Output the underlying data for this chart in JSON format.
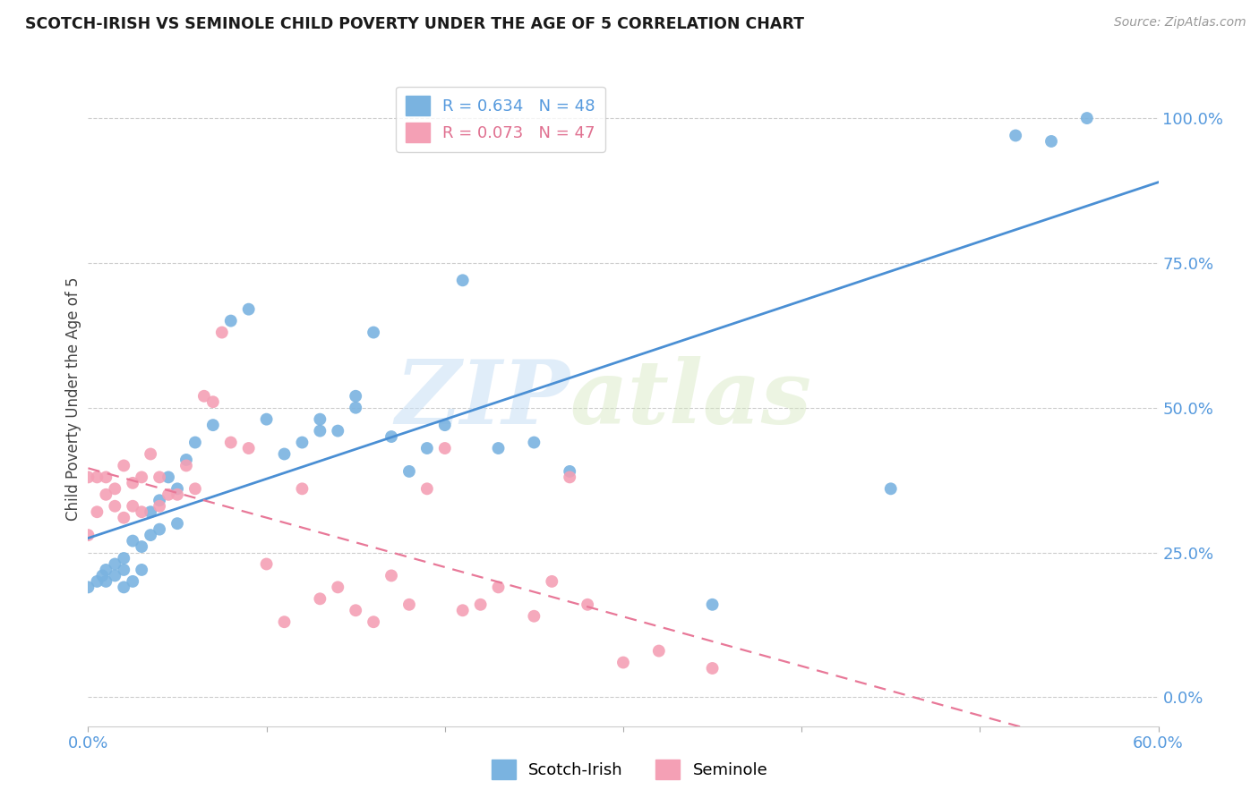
{
  "title": "SCOTCH-IRISH VS SEMINOLE CHILD POVERTY UNDER THE AGE OF 5 CORRELATION CHART",
  "source": "Source: ZipAtlas.com",
  "xlabel_ticks": [
    "0.0%",
    "",
    "",
    "",
    "",
    "",
    "60.0%"
  ],
  "xlabel_vals": [
    0.0,
    0.1,
    0.2,
    0.3,
    0.4,
    0.5,
    0.6
  ],
  "ylabel": "Child Poverty Under the Age of 5",
  "ylabel_ticks_right": [
    "0.0%",
    "25.0%",
    "50.0%",
    "75.0%",
    "100.0%"
  ],
  "ylabel_vals": [
    0.0,
    0.25,
    0.5,
    0.75,
    1.0
  ],
  "xmin": 0.0,
  "xmax": 0.6,
  "ymin": -0.05,
  "ymax": 1.08,
  "scotch_irish_color": "#7ab3e0",
  "seminole_color": "#f4a0b5",
  "scotch_irish_line_color": "#4a8fd4",
  "seminole_line_color": "#e87898",
  "legend_label_blue": "R = 0.634   N = 48",
  "legend_label_pink": "R = 0.073   N = 47",
  "watermark_zip": "ZIP",
  "watermark_atlas": "atlas",
  "scotch_irish_x": [
    0.0,
    0.005,
    0.008,
    0.01,
    0.01,
    0.015,
    0.015,
    0.02,
    0.02,
    0.02,
    0.025,
    0.025,
    0.03,
    0.03,
    0.035,
    0.035,
    0.04,
    0.04,
    0.045,
    0.05,
    0.05,
    0.055,
    0.06,
    0.07,
    0.08,
    0.09,
    0.1,
    0.11,
    0.12,
    0.13,
    0.13,
    0.14,
    0.15,
    0.15,
    0.16,
    0.17,
    0.18,
    0.19,
    0.2,
    0.21,
    0.23,
    0.25,
    0.27,
    0.35,
    0.45,
    0.52,
    0.54,
    0.56
  ],
  "scotch_irish_y": [
    0.19,
    0.2,
    0.21,
    0.2,
    0.22,
    0.21,
    0.23,
    0.19,
    0.22,
    0.24,
    0.2,
    0.27,
    0.22,
    0.26,
    0.28,
    0.32,
    0.29,
    0.34,
    0.38,
    0.3,
    0.36,
    0.41,
    0.44,
    0.47,
    0.65,
    0.67,
    0.48,
    0.42,
    0.44,
    0.46,
    0.48,
    0.46,
    0.5,
    0.52,
    0.63,
    0.45,
    0.39,
    0.43,
    0.47,
    0.72,
    0.43,
    0.44,
    0.39,
    0.16,
    0.36,
    0.97,
    0.96,
    1.0
  ],
  "seminole_x": [
    0.0,
    0.0,
    0.005,
    0.005,
    0.01,
    0.01,
    0.015,
    0.015,
    0.02,
    0.02,
    0.025,
    0.025,
    0.03,
    0.03,
    0.035,
    0.04,
    0.04,
    0.045,
    0.05,
    0.055,
    0.06,
    0.065,
    0.07,
    0.075,
    0.08,
    0.09,
    0.1,
    0.11,
    0.12,
    0.13,
    0.14,
    0.15,
    0.16,
    0.17,
    0.18,
    0.19,
    0.2,
    0.21,
    0.22,
    0.23,
    0.25,
    0.26,
    0.27,
    0.28,
    0.3,
    0.32,
    0.35
  ],
  "seminole_y": [
    0.28,
    0.38,
    0.32,
    0.38,
    0.35,
    0.38,
    0.33,
    0.36,
    0.31,
    0.4,
    0.33,
    0.37,
    0.32,
    0.38,
    0.42,
    0.33,
    0.38,
    0.35,
    0.35,
    0.4,
    0.36,
    0.52,
    0.51,
    0.63,
    0.44,
    0.43,
    0.23,
    0.13,
    0.36,
    0.17,
    0.19,
    0.15,
    0.13,
    0.21,
    0.16,
    0.36,
    0.43,
    0.15,
    0.16,
    0.19,
    0.14,
    0.2,
    0.38,
    0.16,
    0.06,
    0.08,
    0.05
  ]
}
